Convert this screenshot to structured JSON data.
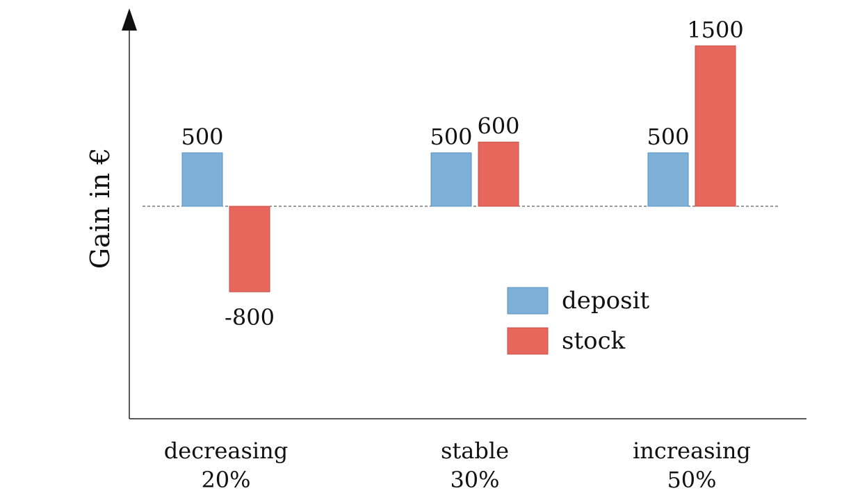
{
  "chart_data": {
    "type": "bar",
    "ylabel": "Gain in €",
    "xlabel": "",
    "categories": [
      {
        "name": "decreasing",
        "share": "20%"
      },
      {
        "name": "stable",
        "share": "30%"
      },
      {
        "name": "increasing",
        "share": "50%"
      }
    ],
    "series": [
      {
        "name": "deposit",
        "color": "#7eb0d8",
        "values": [
          500,
          500,
          500
        ],
        "labels": [
          "500",
          "500",
          "500"
        ]
      },
      {
        "name": "stock",
        "color": "#e8675c",
        "values": [
          -800,
          600,
          1500
        ],
        "labels": [
          "-800",
          "600",
          "1500"
        ]
      }
    ],
    "baseline": 0,
    "baseline_style": "dashed",
    "ylim": [
      -2000,
      1900
    ],
    "grid": false,
    "legend_position": "center-right",
    "y_ticks_shown": false
  }
}
